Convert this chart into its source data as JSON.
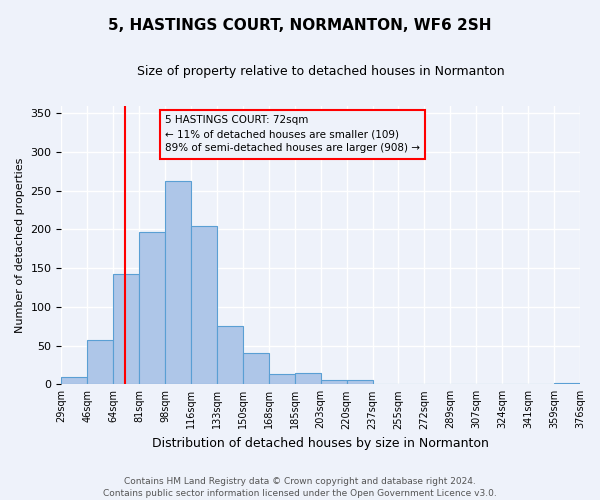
{
  "title": "5, HASTINGS COURT, NORMANTON, WF6 2SH",
  "subtitle": "Size of property relative to detached houses in Normanton",
  "xlabel": "Distribution of detached houses by size in Normanton",
  "ylabel": "Number of detached properties",
  "bin_labels": [
    "29sqm",
    "46sqm",
    "64sqm",
    "81sqm",
    "98sqm",
    "116sqm",
    "133sqm",
    "150sqm",
    "168sqm",
    "185sqm",
    "203sqm",
    "220sqm",
    "237sqm",
    "255sqm",
    "272sqm",
    "289sqm",
    "307sqm",
    "324sqm",
    "341sqm",
    "359sqm",
    "376sqm"
  ],
  "bar_heights": [
    10,
    57,
    143,
    197,
    262,
    204,
    75,
    41,
    13,
    14,
    6,
    5,
    0,
    0,
    0,
    0,
    0,
    0,
    0,
    2
  ],
  "bar_color": "#aec6e8",
  "bar_edge_color": "#5a9fd4",
  "vline_bin": 2,
  "vline_color": "red",
  "ylim": [
    0,
    360
  ],
  "yticks": [
    0,
    50,
    100,
    150,
    200,
    250,
    300,
    350
  ],
  "annotation_title": "5 HASTINGS COURT: 72sqm",
  "annotation_line1": "← 11% of detached houses are smaller (109)",
  "annotation_line2": "89% of semi-detached houses are larger (908) →",
  "annotation_box_color": "red",
  "footer_line1": "Contains HM Land Registry data © Crown copyright and database right 2024.",
  "footer_line2": "Contains public sector information licensed under the Open Government Licence v3.0.",
  "background_color": "#eef2fa",
  "grid_color": "#ffffff",
  "title_fontsize": 11,
  "subtitle_fontsize": 9,
  "xlabel_fontsize": 9,
  "ylabel_fontsize": 8,
  "tick_fontsize": 7,
  "ann_fontsize": 7.5,
  "footer_fontsize": 6.5
}
